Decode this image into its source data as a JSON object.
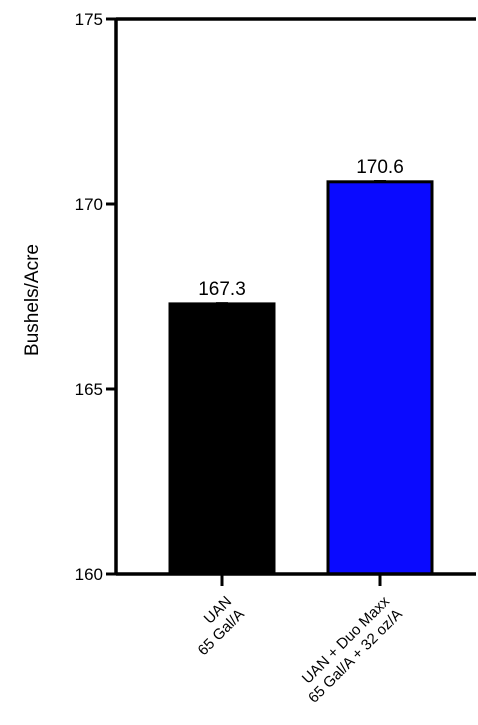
{
  "chart_data": {
    "type": "bar",
    "title": "",
    "xlabel": "",
    "ylabel": "Bushels/Acre",
    "ylim": [
      160,
      175
    ],
    "yticks": [
      160,
      165,
      170,
      175
    ],
    "grid": false,
    "categories": [
      {
        "lines": [
          "UAN",
          "65 Gal/A"
        ]
      },
      {
        "lines": [
          "UAN + Duo Maxx",
          "65 Gal/A + 32 oz/A"
        ]
      }
    ],
    "values": [
      167.3,
      170.6
    ],
    "value_labels": [
      "167.3",
      "170.6"
    ],
    "colors": [
      "#000000",
      "#0a0aff"
    ]
  }
}
